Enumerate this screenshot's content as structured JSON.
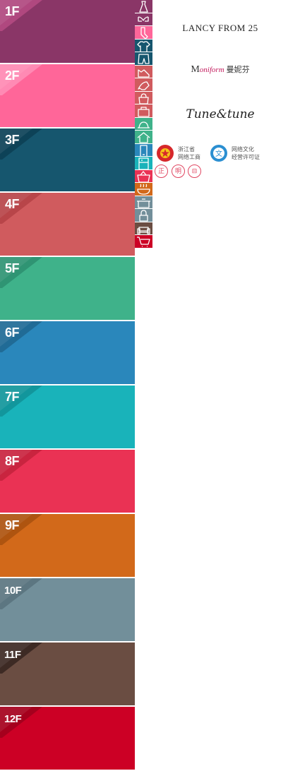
{
  "floors": [
    {
      "label": "1F",
      "color": "#8a3667",
      "tab": "#b0487f"
    },
    {
      "label": "2F",
      "color": "#ff6699",
      "tab": "#ff8ab4"
    },
    {
      "label": "3F",
      "color": "#16566e",
      "tab": "#0d4257"
    },
    {
      "label": "4F",
      "color": "#d05b5e",
      "tab": "#b84549"
    },
    {
      "label": "5F",
      "color": "#3fb28a",
      "tab": "#2f9473"
    },
    {
      "label": "6F",
      "color": "#2a87bb",
      "tab": "#206b96"
    },
    {
      "label": "7F",
      "color": "#19b3ba",
      "tab": "#12969c"
    },
    {
      "label": "8F",
      "color": "#ea3254",
      "tab": "#c9243f"
    },
    {
      "label": "9F",
      "color": "#d2691a",
      "tab": "#ae5410"
    },
    {
      "label": "10F",
      "color": "#728f9a",
      "tab": "#5c7681"
    },
    {
      "label": "11F",
      "color": "#6a4d42",
      "tab": "#3d2a24"
    },
    {
      "label": "12F",
      "color": "#cc0025",
      "tab": "#a5001d"
    }
  ],
  "icons": [
    {
      "name": "dress-icon",
      "color": "#8a3667"
    },
    {
      "name": "bra-icon",
      "color": "#8a3667"
    },
    {
      "name": "sock-icon",
      "color": "#ff6699"
    },
    {
      "name": "tshirt-icon",
      "color": "#16566e"
    },
    {
      "name": "shorts-icon",
      "color": "#16566e"
    },
    {
      "name": "shoe-icon",
      "color": "#d05b5e"
    },
    {
      "name": "heel-icon",
      "color": "#d05b5e"
    },
    {
      "name": "handbag-icon",
      "color": "#d05b5e"
    },
    {
      "name": "bag-icon",
      "color": "#d05b5e"
    },
    {
      "name": "hat-icon",
      "color": "#3fb28a"
    },
    {
      "name": "house-icon",
      "color": "#3fb28a"
    },
    {
      "name": "phone-icon",
      "color": "#2a87bb"
    },
    {
      "name": "appliance-icon",
      "color": "#19b3ba"
    },
    {
      "name": "basket-icon",
      "color": "#ea3254"
    },
    {
      "name": "food-icon",
      "color": "#d2691a"
    },
    {
      "name": "pot-icon",
      "color": "#728f9a"
    },
    {
      "name": "lock-icon",
      "color": "#728f9a"
    },
    {
      "name": "sofa-icon",
      "color": "#6a4d42"
    },
    {
      "name": "cart-icon",
      "color": "#cc0025"
    }
  ],
  "brands": {
    "lancy": "LANCY FROM 25",
    "moni_m": "M",
    "moni_script": "oniform",
    "moni_cn": "曼妮芬",
    "tune": "Tune&tune"
  },
  "badges": {
    "aic_line1": "浙江省",
    "aic_line2": "网络工商",
    "culture_line1": "网络文化",
    "culture_line2": "经营许可证",
    "circle1": "正",
    "circle2": "明",
    "circle3": "⊟"
  }
}
